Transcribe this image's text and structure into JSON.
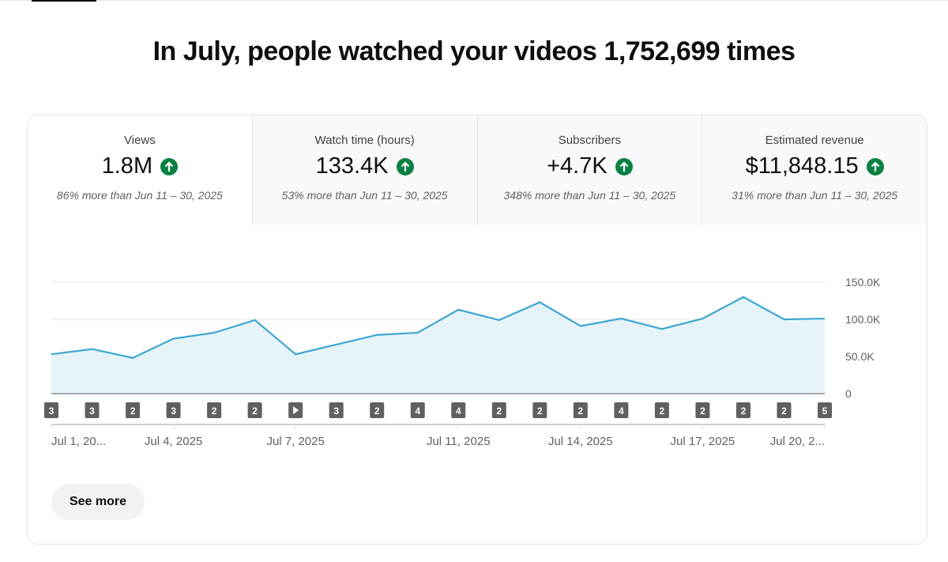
{
  "headline": "In July, people watched your videos 1,752,699 times",
  "metrics": [
    {
      "label": "Views",
      "value": "1.8M",
      "comparison": "86% more than Jun 11 – 30, 2025",
      "trend": "up"
    },
    {
      "label": "Watch time (hours)",
      "value": "133.4K",
      "comparison": "53% more than Jun 11 – 30, 2025",
      "trend": "up"
    },
    {
      "label": "Subscribers",
      "value": "+4.7K",
      "comparison": "348% more than Jun 11 – 30, 2025",
      "trend": "up"
    },
    {
      "label": "Estimated revenue",
      "value": "$11,848.15",
      "comparison": "31% more than Jun 11 – 30, 2025",
      "trend": "up"
    }
  ],
  "see_more": "See more",
  "colors": {
    "line": "#3ea6cf",
    "fill": "#e6f4fa",
    "up": "#0b8043"
  },
  "chart_data": {
    "type": "area",
    "series": [
      {
        "name": "Views",
        "values": [
          53000,
          60000,
          48000,
          74000,
          82000,
          99000,
          53000,
          66000,
          79000,
          82000,
          113000,
          99000,
          123000,
          91000,
          101000,
          87000,
          101000,
          130000,
          100000,
          101000
        ]
      }
    ],
    "ylim": [
      0,
      150000
    ],
    "yticks": [
      "0",
      "50.0K",
      "100.0K",
      "150.0K"
    ],
    "xtick_labels": [
      {
        "index": 0,
        "label": "Jul 1, 20..."
      },
      {
        "index": 3,
        "label": "Jul 4, 2025"
      },
      {
        "index": 6,
        "label": "Jul 7, 2025"
      },
      {
        "index": 10,
        "label": "Jul 11, 2025"
      },
      {
        "index": 13,
        "label": "Jul 14, 2025"
      },
      {
        "index": 16,
        "label": "Jul 17, 2025"
      },
      {
        "index": 19,
        "label": "Jul 20, 2..."
      }
    ],
    "video_markers": [
      "3",
      "3",
      "2",
      "3",
      "2",
      "2",
      "play",
      "3",
      "2",
      "4",
      "4",
      "2",
      "2",
      "2",
      "4",
      "2",
      "2",
      "2",
      "2",
      "5"
    ],
    "grid": true
  }
}
